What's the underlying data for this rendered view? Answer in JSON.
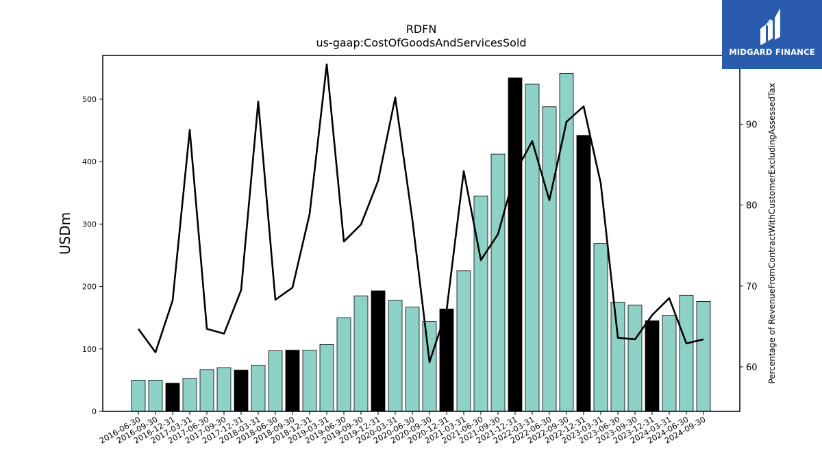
{
  "chart_data": {
    "type": "bar",
    "title": "RDFN",
    "subtitle": "us-gaap:CostOfGoodsAndServicesSold",
    "ylabel": "USDm",
    "y2label": "Percentage of RevenueFromContractWithCustomerExcludingAssessedTax",
    "ylim": [
      0,
      570
    ],
    "y2lim": [
      54.5,
      98.5
    ],
    "yticks": [
      0,
      100,
      200,
      300,
      400,
      500
    ],
    "y2ticks": [
      60,
      70,
      80,
      90
    ],
    "categories": [
      "2016-06-30",
      "2016-09-30",
      "2016-12-31",
      "2017-03-31",
      "2017-06-30",
      "2017-09-30",
      "2017-12-31",
      "2018-03-31",
      "2018-06-30",
      "2018-09-30",
      "2018-12-31",
      "2019-03-31",
      "2019-06-30",
      "2019-09-30",
      "2019-12-31",
      "2020-03-31",
      "2020-06-30",
      "2020-09-30",
      "2020-12-31",
      "2021-03-31",
      "2021-06-30",
      "2021-09-30",
      "2021-12-31",
      "2022-03-31",
      "2022-06-30",
      "2022-09-30",
      "2022-12-31",
      "2023-03-31",
      "2023-06-30",
      "2023-09-30",
      "2023-12-31",
      "2024-03-31",
      "2024-06-30",
      "2024-09-30"
    ],
    "series": [
      {
        "type": "bar",
        "values": [
          50,
          50,
          45,
          53,
          67,
          70,
          66,
          74,
          97,
          98,
          98,
          107,
          150,
          185,
          193,
          178,
          167,
          144,
          164,
          225,
          345,
          412,
          534,
          524,
          488,
          541,
          442,
          269,
          175,
          170,
          145,
          154,
          186,
          176
        ],
        "colors": [
          "#8ed1c6",
          "#8ed1c6",
          "#000000",
          "#8ed1c6",
          "#8ed1c6",
          "#8ed1c6",
          "#000000",
          "#8ed1c6",
          "#8ed1c6",
          "#000000",
          "#8ed1c6",
          "#8ed1c6",
          "#8ed1c6",
          "#8ed1c6",
          "#000000",
          "#8ed1c6",
          "#8ed1c6",
          "#8ed1c6",
          "#000000",
          "#8ed1c6",
          "#8ed1c6",
          "#8ed1c6",
          "#000000",
          "#8ed1c6",
          "#8ed1c6",
          "#8ed1c6",
          "#000000",
          "#8ed1c6",
          "#8ed1c6",
          "#8ed1c6",
          "#000000",
          "#8ed1c6",
          "#8ed1c6",
          "#8ed1c6"
        ]
      },
      {
        "type": "line",
        "axis": "right",
        "color": "#000000",
        "values": [
          64.7,
          61.8,
          68.2,
          89.3,
          64.7,
          64.1,
          69.5,
          92.8,
          68.3,
          69.8,
          78.9,
          97.4,
          75.5,
          77.6,
          83.0,
          93.3,
          78.2,
          60.6,
          67.0,
          84.2,
          73.2,
          76.4,
          84.0,
          87.9,
          80.6,
          90.3,
          92.2,
          82.7,
          63.6,
          63.4,
          66.4,
          68.5,
          62.9,
          63.4
        ]
      }
    ]
  },
  "logo": {
    "text": "MIDGARD FINANCE"
  }
}
